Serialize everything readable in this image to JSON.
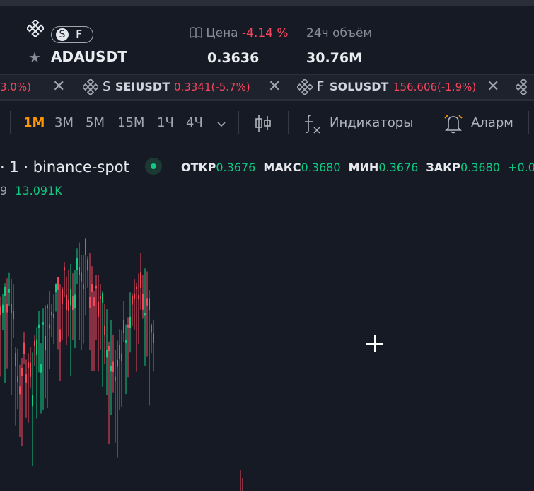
{
  "header": {
    "badge_s": "S",
    "badge_f": "F",
    "symbol": "ADAUSDT",
    "price_label": "Цена",
    "price_change": "-4.14 %",
    "price_value": "0.3636",
    "volume_label": "24ч объём",
    "volume_value": "30.76M"
  },
  "tabs": [
    {
      "prefix": "",
      "name": "",
      "change": "3.0%)"
    },
    {
      "prefix": "S",
      "name": "SEIUSDT",
      "change": "0.3341(-5.7%)"
    },
    {
      "prefix": "F",
      "name": "SOLUSDT",
      "change": "156.606(-1.9%)"
    }
  ],
  "toolbar": {
    "timeframes": [
      "1M",
      "3M",
      "5M",
      "15M",
      "1Ч",
      "4Ч"
    ],
    "active_timeframe": "1M",
    "indicators_label": "Индикаторы",
    "alarm_label": "Аларм"
  },
  "chart": {
    "legend_title": "· 1 · binance-spot",
    "open_label": "ОТКР",
    "open_value": "0.3676",
    "high_label": "МАКС",
    "high_value": "0.3680",
    "low_label": "МИН",
    "low_value": "0.3676",
    "close_label": "ЗАКР",
    "close_value": "0.3680",
    "change_value": "+0.00",
    "volume_prefix": "9",
    "volume_value": "13.091K"
  },
  "colors": {
    "background": "#161a25",
    "up": "#0ecb81",
    "down": "#f6465d",
    "accent": "#ff9800",
    "binance": "#e6e8ee"
  },
  "icons": [
    "binance-logo-icon",
    "star-icon",
    "book-icon",
    "close-icon",
    "chevron-down-icon",
    "candlestick-icon",
    "function-fx-icon",
    "alarm-bell-icon",
    "crosshair-cursor-icon"
  ]
}
